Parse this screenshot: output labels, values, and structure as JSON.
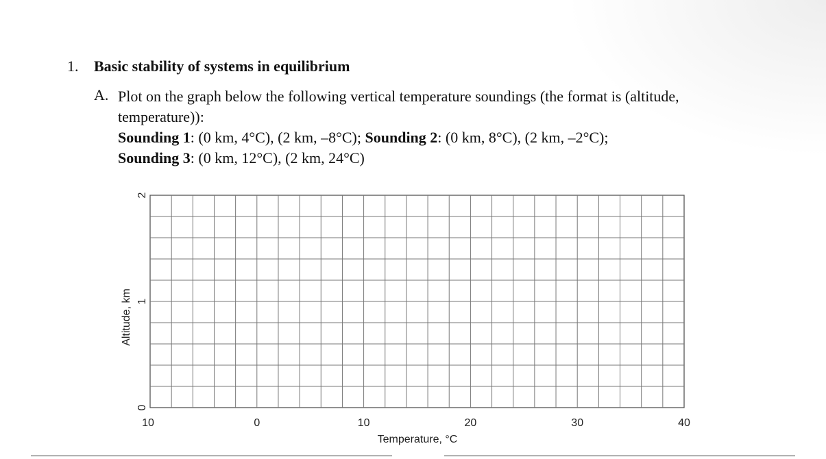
{
  "question": {
    "number": "1.",
    "title": "Basic stability of systems in equilibrium"
  },
  "part_a": {
    "letter": "A.",
    "line1": "Plot on the graph below the following vertical temperature soundings (the format is (altitude,",
    "line2": "temperature)):",
    "s1_label": "Sounding 1",
    "s1_text": ": (0 km, 4°C), (2 km, –8°C); ",
    "s2_label": "Sounding 2",
    "s2_text": ": (0 km, 8°C), (2 km, –2°C);",
    "s3_label": "Sounding 3",
    "s3_text": ": (0 km, 12°C), (2 km, 24°C)"
  },
  "chart_data": {
    "type": "scatter",
    "title": "",
    "xlabel": "Temperature, °C",
    "ylabel": "Altitude, km",
    "x_tick_labels": [
      "10",
      "0",
      "10",
      "20",
      "30",
      "40"
    ],
    "y_tick_labels": [
      "0",
      "1",
      "2"
    ],
    "xlim": [
      -10,
      40
    ],
    "ylim": [
      0,
      2
    ],
    "grid": true,
    "grid_columns": 25,
    "grid_rows": 10,
    "series": []
  }
}
